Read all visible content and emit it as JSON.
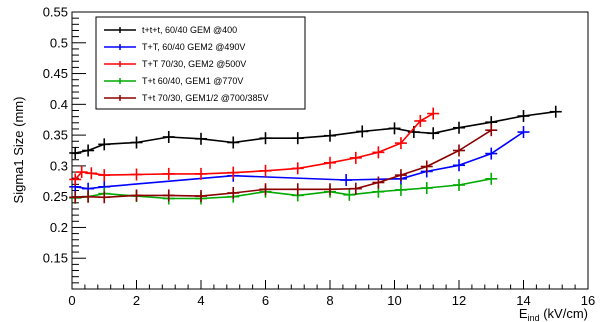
{
  "chart_data": {
    "type": "line",
    "title": "",
    "xlabel_main": "E",
    "xlabel_sub": "ind",
    "xlabel_unit": " (kV/cm)",
    "ylabel": "Sigma1 Size (mm)",
    "xlim": [
      0,
      16
    ],
    "ylim": [
      0.1,
      0.55
    ],
    "x_ticks": [
      "0",
      "2",
      "4",
      "6",
      "8",
      "10",
      "12",
      "14",
      "16"
    ],
    "y_ticks": [
      "0.15",
      "0.2",
      "0.25",
      "0.3",
      "0.35",
      "0.4",
      "0.45",
      "0.5",
      "0.55"
    ],
    "grid": false,
    "legend_position": "top-left",
    "series": [
      {
        "name": "t+t+t, 60/40 GEM @400",
        "color": "#000000",
        "x": [
          0.1,
          0.5,
          1.0,
          2.0,
          3.0,
          4.0,
          5.0,
          6.0,
          7.0,
          8.0,
          9.0,
          10.0,
          10.6,
          11.2,
          12.0,
          13.0,
          14.0,
          15.0
        ],
        "y": [
          0.321,
          0.325,
          0.335,
          0.338,
          0.347,
          0.344,
          0.338,
          0.345,
          0.345,
          0.349,
          0.356,
          0.361,
          0.355,
          0.353,
          0.362,
          0.371,
          0.381,
          0.388
        ]
      },
      {
        "name": "T+T, 60/40 GEM2 @490V",
        "color": "#0000ff",
        "x": [
          0.1,
          0.5,
          1.0,
          5.0,
          8.5,
          10.2,
          11.0,
          12.0,
          13.0,
          14.0
        ],
        "y": [
          0.266,
          0.263,
          0.266,
          0.284,
          0.277,
          0.279,
          0.291,
          0.301,
          0.32,
          0.355
        ]
      },
      {
        "name": "T+T 70/30, GEM2 @500V",
        "color": "#ff0000",
        "x": [
          0.1,
          0.3,
          0.6,
          1.0,
          2.0,
          3.0,
          4.0,
          5.0,
          6.0,
          7.0,
          8.0,
          8.8,
          9.5,
          10.2,
          10.8,
          11.2
        ],
        "y": [
          0.278,
          0.29,
          0.288,
          0.285,
          0.286,
          0.287,
          0.287,
          0.289,
          0.292,
          0.296,
          0.305,
          0.313,
          0.322,
          0.337,
          0.373,
          0.385
        ]
      },
      {
        "name": "T+t 60/40, GEM1 @770V",
        "color": "#00aa00",
        "x": [
          0.1,
          0.5,
          1.0,
          2.0,
          3.0,
          4.0,
          5.0,
          6.0,
          7.0,
          8.0,
          8.6,
          9.5,
          10.2,
          11.0,
          12.0,
          13.0
        ],
        "y": [
          0.248,
          0.25,
          0.255,
          0.251,
          0.247,
          0.247,
          0.25,
          0.258,
          0.252,
          0.258,
          0.253,
          0.258,
          0.261,
          0.264,
          0.269,
          0.279
        ]
      },
      {
        "name": "T+t 70/30, GEM1/2 @700/385V",
        "color": "#8b0000",
        "x": [
          0.1,
          0.5,
          1.0,
          2.0,
          3.0,
          4.0,
          5.0,
          6.0,
          7.0,
          8.0,
          8.8,
          9.5,
          10.2,
          11.0,
          12.0,
          13.0
        ],
        "y": [
          0.249,
          0.25,
          0.249,
          0.252,
          0.252,
          0.251,
          0.256,
          0.262,
          0.262,
          0.262,
          0.263,
          0.273,
          0.285,
          0.299,
          0.325,
          0.358
        ]
      }
    ]
  }
}
